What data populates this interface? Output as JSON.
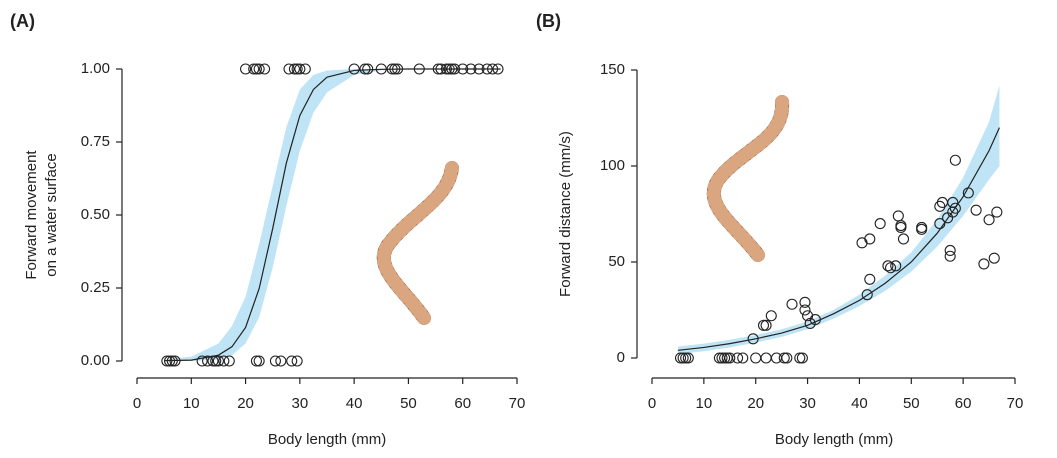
{
  "chart_data": [
    {
      "type": "scatter",
      "panel_label": "(A)",
      "xlabel": "Body length (mm)",
      "ylabel": [
        "Forward movement",
        "on a water surface"
      ],
      "xlim": [
        0,
        70
      ],
      "xticks": [
        0,
        10,
        20,
        30,
        40,
        50,
        60,
        70
      ],
      "ylim": [
        0,
        1
      ],
      "yticks": [
        {
          "value": 0,
          "label": "0.00"
        },
        {
          "value": 0.25,
          "label": "0.25"
        },
        {
          "value": 0.5,
          "label": "0.50"
        },
        {
          "value": 0.75,
          "label": "0.75"
        },
        {
          "value": 1,
          "label": "1.00"
        }
      ],
      "point_color": "#222222",
      "line_color": "#222222",
      "band_color": "#bfe4f5",
      "x": [
        20,
        21.5,
        22,
        22.5,
        23.5,
        28,
        29,
        29.5,
        30,
        31,
        40,
        42,
        42.5,
        45,
        47,
        47.5,
        48,
        52,
        55.5,
        56,
        57,
        57.5,
        58,
        58.5,
        60,
        61.5,
        63,
        64.5,
        65.5,
        66.5,
        5.5,
        6,
        6.5,
        7,
        12,
        13,
        14,
        14.5,
        15,
        16,
        17,
        22,
        22.5,
        25.5,
        26.5,
        28.5,
        29.5
      ],
      "values": [
        1,
        1,
        1,
        1,
        1,
        1,
        1,
        1,
        1,
        1,
        1,
        1,
        1,
        1,
        1,
        1,
        1,
        1,
        1,
        1,
        1,
        1,
        1,
        1,
        1,
        1,
        1,
        1,
        1,
        1,
        0,
        0,
        0,
        0,
        0,
        0,
        0,
        0,
        0,
        0,
        0,
        0,
        0,
        0,
        0,
        0,
        0
      ],
      "fit_x": [
        5,
        10,
        15,
        17.5,
        20,
        22.5,
        25,
        27.5,
        30,
        32.5,
        35,
        40,
        45,
        50,
        55,
        60,
        67
      ],
      "fit": [
        0.001,
        0.003,
        0.02,
        0.049,
        0.115,
        0.248,
        0.454,
        0.677,
        0.841,
        0.93,
        0.972,
        0.995,
        0.999,
        1,
        1,
        1,
        1
      ],
      "fit_lower": [
        0,
        0,
        0.005,
        0.02,
        0.06,
        0.15,
        0.32,
        0.53,
        0.72,
        0.85,
        0.92,
        0.98,
        0.995,
        1,
        1,
        1,
        1
      ],
      "fit_upper": [
        0.005,
        0.015,
        0.06,
        0.12,
        0.22,
        0.4,
        0.6,
        0.8,
        0.93,
        0.98,
        0.995,
        1,
        1,
        1,
        1,
        1,
        1
      ]
    },
    {
      "type": "scatter",
      "panel_label": "(B)",
      "xlabel": "Body length (mm)",
      "ylabel": [
        "Forward distance (mm/s)"
      ],
      "xlim": [
        0,
        70
      ],
      "xticks": [
        0,
        10,
        20,
        30,
        40,
        50,
        60,
        70
      ],
      "ylim": [
        0,
        150
      ],
      "yticks": [
        0,
        50,
        100,
        150
      ],
      "point_color": "#222222",
      "line_color": "#222222",
      "band_color": "#bfe4f5",
      "x": [
        5.5,
        6,
        6.5,
        7,
        13,
        13.5,
        14,
        14.5,
        15,
        16.5,
        17.5,
        19.5,
        20,
        21.5,
        22,
        22,
        23,
        24,
        25.5,
        26,
        27,
        28.5,
        29,
        29.5,
        29.5,
        30,
        30.5,
        31.5,
        40.5,
        41.5,
        42,
        42,
        44,
        45.5,
        46,
        47,
        47.5,
        48,
        48,
        48.5,
        52,
        52,
        55.5,
        55.5,
        56,
        57,
        57.5,
        57.5,
        58,
        58,
        58.5,
        58.5,
        61,
        62.5,
        64,
        65,
        66,
        66.5
      ],
      "values": [
        0,
        0,
        0,
        0,
        0,
        0,
        0,
        0,
        0,
        0,
        0,
        10,
        0,
        17,
        17,
        0,
        22,
        0,
        0,
        0,
        28,
        0,
        0,
        29,
        25,
        22,
        18,
        20,
        60,
        33,
        41,
        62,
        70,
        48,
        47,
        48,
        74,
        69,
        68,
        62,
        68,
        67,
        70,
        79,
        81,
        73,
        53,
        56,
        76,
        81,
        78,
        103,
        86,
        77,
        49,
        72,
        52,
        76
      ],
      "fit_x": [
        5,
        10,
        15,
        20,
        25,
        30,
        35,
        40,
        45,
        50,
        55,
        60,
        65,
        67
      ],
      "fit": [
        4,
        5.5,
        7.5,
        10,
        13,
        17,
        23,
        30,
        39,
        50,
        65,
        84,
        108,
        120
      ],
      "fit_lower": [
        2,
        3.5,
        5.5,
        8,
        11,
        15,
        20.5,
        27,
        35,
        45,
        58,
        74,
        93,
        100
      ],
      "fit_upper": [
        6,
        7.5,
        9.5,
        12,
        15,
        19,
        25,
        33,
        43,
        55,
        72,
        94,
        123,
        142
      ]
    }
  ]
}
